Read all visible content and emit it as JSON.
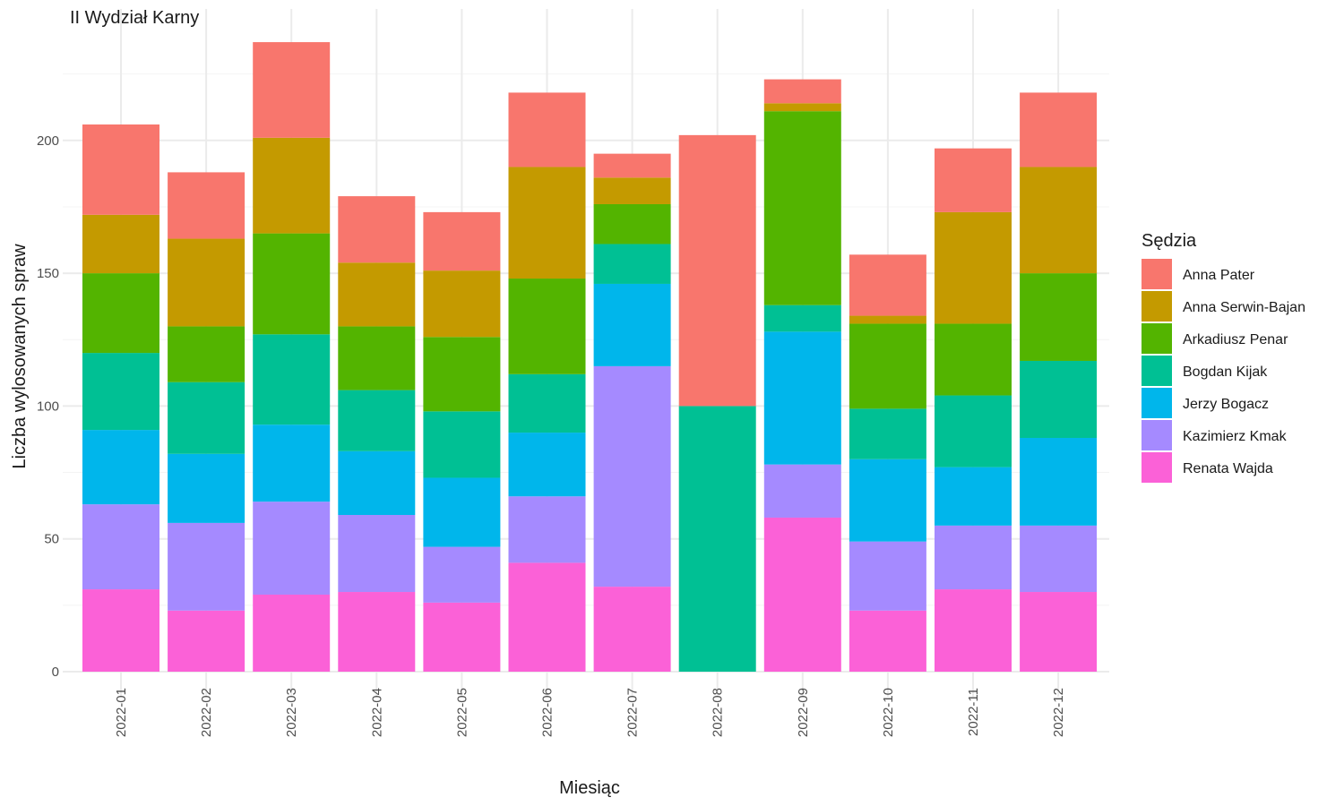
{
  "chart_data": {
    "type": "bar",
    "stacked": true,
    "title": "II Wydział Karny",
    "xlabel": "Miesiąc",
    "ylabel": "Liczba wylosowanych spraw",
    "ylim": [
      0,
      245
    ],
    "yticks": [
      0,
      50,
      100,
      150,
      200
    ],
    "grid": true,
    "legend_title": "Sędzia",
    "legend_position": "right",
    "categories": [
      "2022-01",
      "2022-02",
      "2022-03",
      "2022-04",
      "2022-05",
      "2022-06",
      "2022-07",
      "2022-08",
      "2022-09",
      "2022-10",
      "2022-11",
      "2022-12"
    ],
    "series": [
      {
        "name": "Anna Pater",
        "color": "#F8766D",
        "values": [
          34,
          25,
          36,
          25,
          22,
          28,
          9,
          102,
          9,
          23,
          24,
          28
        ]
      },
      {
        "name": "Anna Serwin-Bajan",
        "color": "#C49A00",
        "values": [
          22,
          33,
          36,
          24,
          25,
          42,
          10,
          0,
          3,
          3,
          42,
          40
        ]
      },
      {
        "name": "Arkadiusz Penar",
        "color": "#53B400",
        "values": [
          30,
          21,
          38,
          24,
          28,
          36,
          15,
          0,
          73,
          32,
          27,
          33
        ]
      },
      {
        "name": "Bogdan Kijak",
        "color": "#00C094",
        "values": [
          29,
          27,
          34,
          23,
          25,
          22,
          15,
          100,
          10,
          19,
          27,
          29
        ]
      },
      {
        "name": "Jerzy Bogacz",
        "color": "#00B6EB",
        "values": [
          28,
          26,
          29,
          24,
          26,
          24,
          31,
          0,
          50,
          31,
          22,
          33
        ]
      },
      {
        "name": "Kazimierz Kmak",
        "color": "#A58AFF",
        "values": [
          32,
          33,
          35,
          29,
          21,
          25,
          83,
          0,
          20,
          26,
          24,
          25
        ]
      },
      {
        "name": "Renata Wajda",
        "color": "#FB61D7",
        "values": [
          31,
          23,
          29,
          30,
          26,
          41,
          32,
          0,
          58,
          23,
          31,
          30
        ]
      }
    ]
  }
}
